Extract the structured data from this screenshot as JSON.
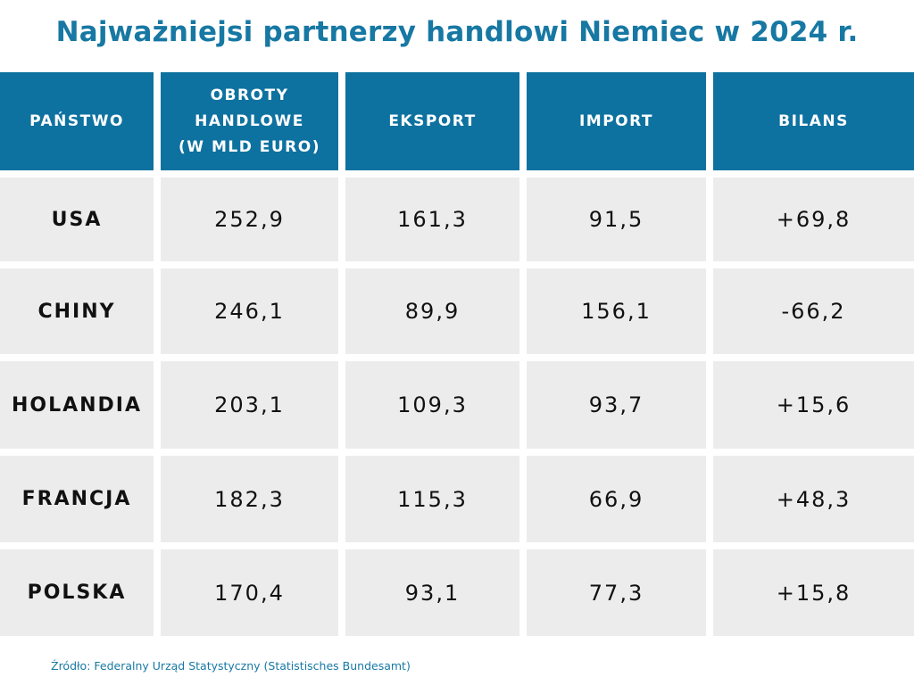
{
  "title": "Najważniejsi partnerzy handlowi Niemiec w 2024 r.",
  "colors": {
    "header": "#0e72a0",
    "row": "#ececec",
    "title": "#1778a3"
  },
  "headers": [
    "PAŃSTWO",
    "OBROTY HANDLOWE (W MLD EURO)",
    "EKSPORT",
    "IMPORT",
    "BILANS"
  ],
  "rows": [
    [
      "USA",
      "252,9",
      "161,3",
      "91,5",
      "+69,8"
    ],
    [
      "CHINY",
      "246,1",
      "89,9",
      "156,1",
      "-66,2"
    ],
    [
      "HOLANDIA",
      "203,1",
      "109,3",
      "93,7",
      "+15,6"
    ],
    [
      "FRANCJA",
      "182,3",
      "115,3",
      "66,9",
      "+48,3"
    ],
    [
      "POLSKA",
      "170,4",
      "93,1",
      "77,3",
      "+15,8"
    ]
  ],
  "source": "Źródło: Federalny Urząd Statystyczny (Statistisches Bundesamt)",
  "chart_data": {
    "type": "table",
    "title": "Najważniejsi partnerzy handlowi Niemiec w 2024 r.",
    "columns": [
      "PAŃSTWO",
      "OBROTY HANDLOWE (W MLD EURO)",
      "EKSPORT",
      "IMPORT",
      "BILANS"
    ],
    "rows": [
      [
        "USA",
        252.9,
        161.3,
        91.5,
        69.8
      ],
      [
        "CHINY",
        246.1,
        89.9,
        156.1,
        -66.2
      ],
      [
        "HOLANDIA",
        203.1,
        109.3,
        93.7,
        15.6
      ],
      [
        "FRANCJA",
        182.3,
        115.3,
        66.9,
        48.3
      ],
      [
        "POLSKA",
        170.4,
        93.1,
        77.3,
        15.8
      ]
    ]
  }
}
